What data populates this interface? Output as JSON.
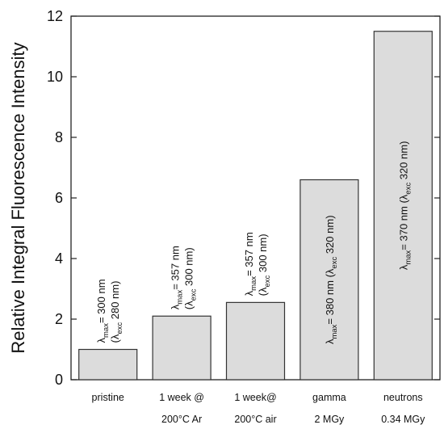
{
  "chart_data": {
    "type": "bar",
    "categories": [
      [
        "pristine"
      ],
      [
        "1 week @",
        "200°C Ar"
      ],
      [
        "1 week@",
        "200°C air"
      ],
      [
        "gamma",
        "2 MGy"
      ],
      [
        "neutrons",
        "0.34 MGy"
      ]
    ],
    "values": [
      1.0,
      2.1,
      2.55,
      6.6,
      11.5
    ],
    "ylabel": "Relative Integral Fluorescence Intensity",
    "xlabel": "",
    "ylim": [
      0,
      12
    ],
    "yticks": [
      0,
      2,
      4,
      6,
      8,
      10,
      12
    ],
    "grid": false,
    "bar_fill": "#dcdcdc",
    "bar_stroke": "#333333",
    "annotations": [
      {
        "lines": [
          [
            [
              "λ",
              ""
            ],
            [
              "max",
              "sub"
            ],
            [
              "= 300 nm",
              ""
            ]
          ],
          [
            [
              "(λ",
              ""
            ],
            [
              "exc",
              "sub"
            ],
            [
              " 280 nm)",
              ""
            ]
          ]
        ]
      },
      {
        "lines": [
          [
            [
              "λ",
              ""
            ],
            [
              "max",
              "sub"
            ],
            [
              "= 357 nm",
              ""
            ]
          ],
          [
            [
              "(λ",
              ""
            ],
            [
              "exc",
              "sub"
            ],
            [
              " 300 nm)",
              ""
            ]
          ]
        ]
      },
      {
        "lines": [
          [
            [
              "λ",
              ""
            ],
            [
              "max",
              "sub"
            ],
            [
              "= 357 nm",
              ""
            ]
          ],
          [
            [
              "(λ",
              ""
            ],
            [
              "exc",
              "sub"
            ],
            [
              " 300 nm)",
              ""
            ]
          ]
        ]
      },
      {
        "lines": [
          [
            [
              "λ",
              ""
            ],
            [
              "max",
              "sub"
            ],
            [
              "= 380 nm (λ",
              ""
            ],
            [
              "exc",
              "sub"
            ],
            [
              " 320 nm)",
              ""
            ]
          ]
        ]
      },
      {
        "lines": [
          [
            [
              "λ",
              ""
            ],
            [
              "max",
              "sub"
            ],
            [
              "= 370 nm (λ",
              ""
            ],
            [
              "exc",
              "sub"
            ],
            [
              " 320 nm)",
              ""
            ]
          ]
        ]
      }
    ]
  }
}
